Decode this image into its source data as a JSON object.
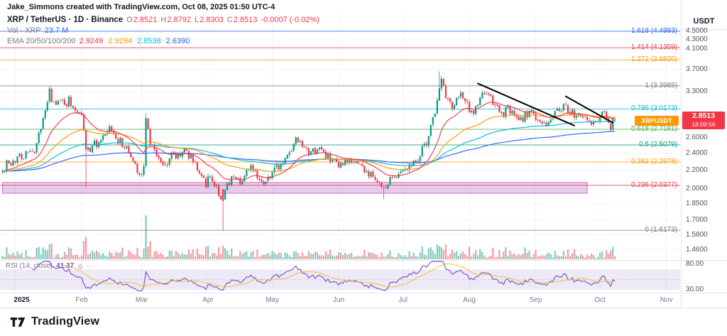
{
  "attribution": "Jake_Simmons created with TradingView.com, Oct 08, 2025 01:50 UTC-4",
  "header": {
    "symbol_title": "XRP / TetherUS · 1D · Binance",
    "ohlc": {
      "o_label": "O",
      "o": "2.8521",
      "h_label": "H",
      "h": "2.8792",
      "l_label": "L",
      "l": "2.8303",
      "c_label": "C",
      "c": "2.8513",
      "change": "-0.0007 (-0.02%)"
    },
    "volume_label": "Vol · XRP",
    "volume_value": "23.7 M",
    "ema_label": "EMA 20/50/100/200",
    "ema_values": [
      {
        "text": "2.9249",
        "color": "#f23645"
      },
      {
        "text": "2.9294",
        "color": "#ff9800"
      },
      {
        "text": "2.8538",
        "color": "#00bcd4"
      },
      {
        "text": "2.6390",
        "color": "#2962ff"
      }
    ]
  },
  "price_axis": {
    "currency_label": "USDT",
    "ticks": [
      "4.5000",
      "4.3000",
      "4.1000",
      "3.7000",
      "3.3000",
      "2.6000",
      "2.4000",
      "2.2000",
      "2.0000",
      "1.8500",
      "1.7000",
      "1.5800",
      "1.4600"
    ],
    "tick_values": [
      4.5,
      4.3,
      4.1,
      3.7,
      3.3,
      2.6,
      2.4,
      2.2,
      2.0,
      1.85,
      1.7,
      1.58,
      1.46
    ],
    "last_price_badge": {
      "price": "2.8513",
      "countdown": "18:09:56",
      "color": "#f23645"
    },
    "symbol_tag": {
      "text": "XRPUSDT",
      "color": "#ff9800"
    }
  },
  "rsi_axis_ticks": [
    {
      "text": "80.00",
      "value": 80
    },
    {
      "text": "30.00",
      "value": 30
    }
  ],
  "time_axis": {
    "labels": [
      {
        "text": "2025",
        "day": 3,
        "grid": 0,
        "major": true
      },
      {
        "text": "Feb",
        "day": 31,
        "grid": 31
      },
      {
        "text": "Mar",
        "day": 59,
        "grid": 59
      },
      {
        "text": "Apr",
        "day": 90,
        "grid": 90
      },
      {
        "text": "May",
        "day": 120,
        "grid": 120
      },
      {
        "text": "Jun",
        "day": 151,
        "grid": 151
      },
      {
        "text": "Jul",
        "day": 181,
        "grid": 181
      },
      {
        "text": "Aug",
        "day": 212,
        "grid": 212
      },
      {
        "text": "Sep",
        "day": 243,
        "grid": 243
      },
      {
        "text": "Oct",
        "day": 273,
        "grid": 273
      },
      {
        "text": "Nov",
        "day": 304,
        "grid": 304
      }
    ]
  },
  "rsi_pane": {
    "label": "RSI (14, close)",
    "value": "41.37",
    "line_color": "#7e57c2",
    "ma_color": "#f1c232",
    "band_color": "rgba(126,87,194,0.13)"
  },
  "footer": {
    "logo_text": "TradingView"
  },
  "chart_data": {
    "type": "candlestick",
    "symbol": "XRPUSDT",
    "interval": "1D",
    "scale": "log",
    "visible_price_range": [
      1.4,
      4.62
    ],
    "up_color": "#089981",
    "down_color": "#f23645",
    "seed": 42,
    "first_day": -6,
    "last_day": 280,
    "anchors": [
      [
        -6,
        2.18
      ],
      [
        -4,
        2.28
      ],
      [
        -2,
        2.24
      ],
      [
        0,
        2.32
      ],
      [
        2,
        2.4
      ],
      [
        4,
        2.36
      ],
      [
        6,
        2.44
      ],
      [
        8,
        2.38
      ],
      [
        10,
        2.52
      ],
      [
        12,
        2.72
      ],
      [
        14,
        3.02
      ],
      [
        16,
        3.28
      ],
      [
        17,
        3.16
      ],
      [
        19,
        3.04
      ],
      [
        21,
        3.2
      ],
      [
        23,
        3.1
      ],
      [
        25,
        3.16
      ],
      [
        27,
        3.06
      ],
      [
        29,
        3.0
      ],
      [
        31,
        2.94
      ],
      [
        33,
        2.48
      ],
      [
        35,
        2.44
      ],
      [
        37,
        2.54
      ],
      [
        39,
        2.5
      ],
      [
        41,
        2.58
      ],
      [
        44,
        2.72
      ],
      [
        46,
        2.64
      ],
      [
        48,
        2.58
      ],
      [
        50,
        2.52
      ],
      [
        52,
        2.46
      ],
      [
        54,
        2.36
      ],
      [
        56,
        2.26
      ],
      [
        58,
        2.16
      ],
      [
        60,
        2.24
      ],
      [
        61,
        2.86
      ],
      [
        62,
        2.72
      ],
      [
        63,
        2.56
      ],
      [
        65,
        2.46
      ],
      [
        67,
        2.34
      ],
      [
        69,
        2.24
      ],
      [
        71,
        2.28
      ],
      [
        73,
        2.42
      ],
      [
        75,
        2.36
      ],
      [
        77,
        2.4
      ],
      [
        79,
        2.44
      ],
      [
        81,
        2.38
      ],
      [
        83,
        2.32
      ],
      [
        85,
        2.24
      ],
      [
        87,
        2.14
      ],
      [
        89,
        2.06
      ],
      [
        91,
        2.12
      ],
      [
        93,
        2.06
      ],
      [
        95,
        1.96
      ],
      [
        97,
        1.88
      ],
      [
        99,
        2.02
      ],
      [
        101,
        2.1
      ],
      [
        103,
        2.14
      ],
      [
        105,
        2.08
      ],
      [
        107,
        2.14
      ],
      [
        109,
        2.2
      ],
      [
        111,
        2.24
      ],
      [
        113,
        2.16
      ],
      [
        115,
        2.1
      ],
      [
        117,
        2.08
      ],
      [
        119,
        2.16
      ],
      [
        121,
        2.2
      ],
      [
        123,
        2.24
      ],
      [
        125,
        2.3
      ],
      [
        127,
        2.36
      ],
      [
        129,
        2.44
      ],
      [
        131,
        2.56
      ],
      [
        133,
        2.5
      ],
      [
        135,
        2.44
      ],
      [
        137,
        2.38
      ],
      [
        139,
        2.42
      ],
      [
        141,
        2.46
      ],
      [
        143,
        2.44
      ],
      [
        145,
        2.38
      ],
      [
        147,
        2.32
      ],
      [
        149,
        2.28
      ],
      [
        151,
        2.22
      ],
      [
        153,
        2.26
      ],
      [
        155,
        2.3
      ],
      [
        157,
        2.28
      ],
      [
        159,
        2.32
      ],
      [
        161,
        2.26
      ],
      [
        163,
        2.2
      ],
      [
        165,
        2.16
      ],
      [
        167,
        2.12
      ],
      [
        169,
        2.1
      ],
      [
        171,
        2.02
      ],
      [
        172,
        1.98
      ],
      [
        174,
        2.06
      ],
      [
        176,
        2.12
      ],
      [
        178,
        2.16
      ],
      [
        180,
        2.2
      ],
      [
        182,
        2.24
      ],
      [
        184,
        2.26
      ],
      [
        186,
        2.32
      ],
      [
        188,
        2.36
      ],
      [
        190,
        2.44
      ],
      [
        192,
        2.56
      ],
      [
        194,
        2.76
      ],
      [
        196,
        2.98
      ],
      [
        198,
        3.4
      ],
      [
        199,
        3.46
      ],
      [
        200,
        3.36
      ],
      [
        202,
        3.16
      ],
      [
        204,
        3.06
      ],
      [
        206,
        3.18
      ],
      [
        208,
        3.26
      ],
      [
        210,
        3.12
      ],
      [
        212,
        3.02
      ],
      [
        214,
        2.96
      ],
      [
        216,
        3.1
      ],
      [
        218,
        3.24
      ],
      [
        220,
        3.3
      ],
      [
        222,
        3.16
      ],
      [
        224,
        3.06
      ],
      [
        226,
        2.98
      ],
      [
        228,
        2.94
      ],
      [
        230,
        3.02
      ],
      [
        232,
        2.94
      ],
      [
        234,
        2.88
      ],
      [
        236,
        2.84
      ],
      [
        238,
        2.92
      ],
      [
        240,
        2.98
      ],
      [
        242,
        2.92
      ],
      [
        244,
        2.86
      ],
      [
        246,
        2.8
      ],
      [
        248,
        2.78
      ],
      [
        250,
        2.86
      ],
      [
        252,
        2.94
      ],
      [
        254,
        3.02
      ],
      [
        256,
        3.06
      ],
      [
        258,
        3.0
      ],
      [
        260,
        2.94
      ],
      [
        262,
        2.88
      ],
      [
        264,
        2.92
      ],
      [
        266,
        2.94
      ],
      [
        268,
        2.86
      ],
      [
        270,
        2.78
      ],
      [
        272,
        2.84
      ],
      [
        274,
        2.92
      ],
      [
        275,
        2.98
      ],
      [
        276,
        2.92
      ],
      [
        277,
        2.86
      ],
      [
        278,
        2.76
      ],
      [
        279,
        2.82
      ],
      [
        280,
        2.8513
      ]
    ],
    "overrides": [
      {
        "day": 16,
        "high": 3.3985
      },
      {
        "day": 33,
        "low": 2.02
      },
      {
        "day": 61,
        "high": 2.95
      },
      {
        "day": 97,
        "open": 2.0,
        "close": 1.88,
        "low": 1.6173
      },
      {
        "day": 172,
        "low": 1.9
      },
      {
        "day": 198,
        "high": 3.66
      },
      {
        "day": 278,
        "low": 2.69
      },
      {
        "day": 280,
        "open": 2.8521,
        "high": 2.8792,
        "low": 2.8303,
        "close": 2.8513
      }
    ],
    "emas": [
      {
        "period": 20,
        "color": "#f23645",
        "last_value": "2.9249"
      },
      {
        "period": 50,
        "color": "#ff9800",
        "last_value": "2.9294"
      },
      {
        "period": 100,
        "color": "#00bcd4",
        "last_value": "2.8538"
      },
      {
        "period": 200,
        "color": "#2962ff",
        "last_value": "2.6390"
      }
    ],
    "volume": {
      "last_label": "23.7 M",
      "up_color": "rgba(8,153,129,0.5)",
      "down_color": "rgba(242,54,69,0.5)"
    },
    "rsi": {
      "period": 14,
      "last_value": 41.37
    },
    "fib_levels": [
      {
        "label": "1.618 (4.4993)",
        "level": 1.618,
        "price": 4.4993,
        "color": "#2962ff"
      },
      {
        "label": "1.414 (4.1359)",
        "level": 1.414,
        "price": 4.1359,
        "color": "#f23645"
      },
      {
        "label": "1.272 (3.8830)",
        "level": 1.272,
        "price": 3.883,
        "color": "#ff9800"
      },
      {
        "label": "1 (3.3985)",
        "level": 1,
        "price": 3.3985,
        "color": "#787b86"
      },
      {
        "label": "0.786 (3.0173)",
        "level": 0.786,
        "price": 3.0173,
        "color": "#00bcd4"
      },
      {
        "label": "0.618 (2.7181)",
        "level": 0.618,
        "price": 2.7181,
        "color": "#4caf50"
      },
      {
        "label": "0.5 (2.5079)",
        "level": 0.5,
        "price": 2.5079,
        "color": "#089981"
      },
      {
        "label": "0.382 (2.2978)",
        "level": 0.382,
        "price": 2.2978,
        "color": "#ff9800"
      },
      {
        "label": "0.236 (2.0377)",
        "level": 0.236,
        "price": 2.0377,
        "color": "#f23645"
      },
      {
        "label": "0 (1.6173)",
        "level": 0,
        "price": 1.6173,
        "color": "#787b86"
      }
    ],
    "trendlines": [
      {
        "d1": 216,
        "p1": 3.44,
        "d2": 261,
        "p2": 2.77,
        "color": "#000000"
      },
      {
        "d1": 257,
        "p1": 3.22,
        "d2": 279,
        "p2": 2.81,
        "color": "#000000"
      }
    ],
    "support_zone": {
      "d1": -6,
      "d2": 267,
      "p_top": 2.068,
      "p_bottom": 1.956,
      "fill": "rgba(171,71,188,0.28)",
      "stroke": "rgba(142,36,170,0.55)"
    }
  }
}
